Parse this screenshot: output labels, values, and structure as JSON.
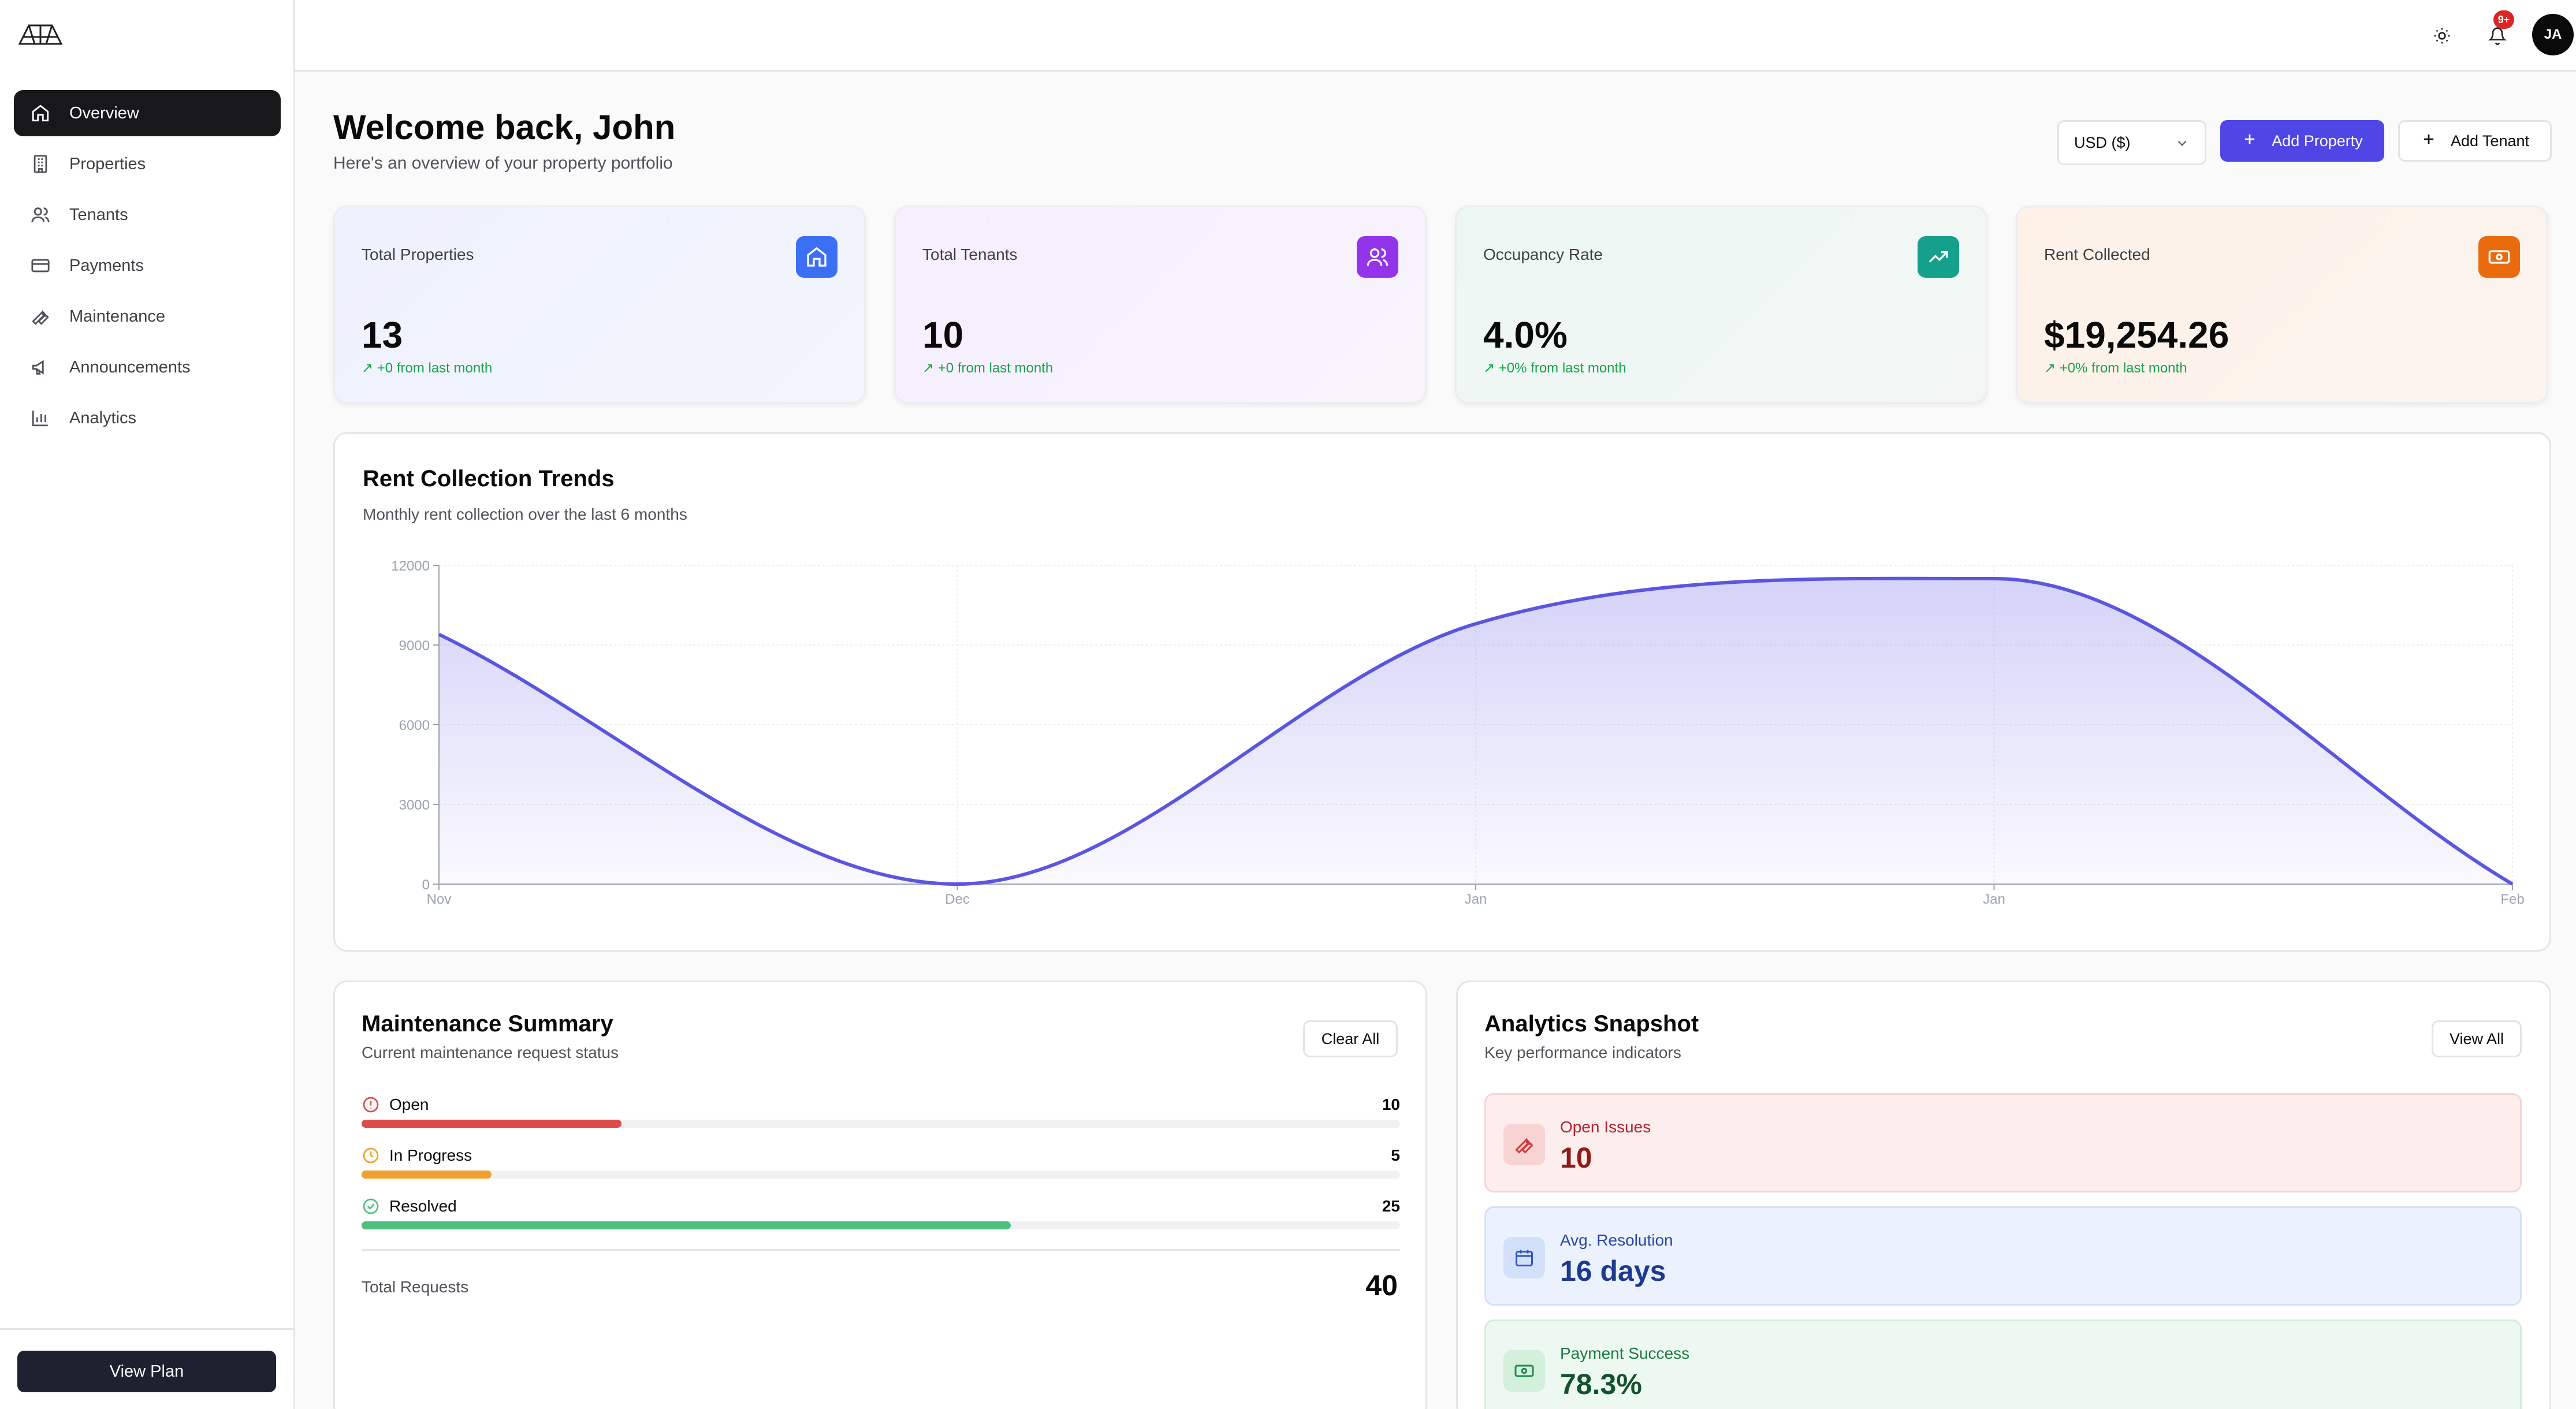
{
  "sidebar": {
    "items": [
      {
        "label": "Overview",
        "icon": "home-icon",
        "active": true
      },
      {
        "label": "Properties",
        "icon": "building-icon"
      },
      {
        "label": "Tenants",
        "icon": "users-icon"
      },
      {
        "label": "Payments",
        "icon": "credit-card-icon"
      },
      {
        "label": "Maintenance",
        "icon": "wrench-icon"
      },
      {
        "label": "Announcements",
        "icon": "megaphone-icon"
      },
      {
        "label": "Analytics",
        "icon": "bar-chart-icon"
      }
    ],
    "footer_button": "View Plan"
  },
  "topbar": {
    "notification_badge": "9+",
    "avatar_initials": "JA"
  },
  "header": {
    "title": "Welcome back, John",
    "subtitle": "Here's an overview of your property portfolio",
    "currency": "USD ($)",
    "add_property": "Add Property",
    "add_tenant": "Add Tenant"
  },
  "stats": [
    {
      "label": "Total Properties",
      "value": "13",
      "delta": "+0 from last month",
      "icon": "home-icon",
      "color": "#3b6ff5"
    },
    {
      "label": "Total Tenants",
      "value": "10",
      "delta": "+0 from last month",
      "icon": "users-icon",
      "color": "#9333ea"
    },
    {
      "label": "Occupancy Rate",
      "value": "4.0%",
      "delta": "+0% from last month",
      "icon": "trending-up-icon",
      "color": "#14a08a"
    },
    {
      "label": "Rent Collected",
      "value": "$19,254.26",
      "delta": "+0% from last month",
      "icon": "banknote-icon",
      "color": "#ea6b0e"
    }
  ],
  "chart_section": {
    "title": "Rent Collection Trends",
    "subtitle": "Monthly rent collection over the last 6 months"
  },
  "chart_data": {
    "type": "area",
    "x": [
      "Nov",
      "Dec",
      "Jan",
      "Jan",
      "Feb"
    ],
    "values": [
      9400,
      0,
      9800,
      11500,
      0
    ],
    "ylim": [
      0,
      12000
    ],
    "yticks": [
      "0",
      "3000",
      "6000",
      "9000",
      "12000"
    ],
    "line_color": "#5b55e0",
    "grid": true
  },
  "maintenance": {
    "title": "Maintenance Summary",
    "subtitle": "Current maintenance request status",
    "clear_all": "Clear All",
    "rows": [
      {
        "label": "Open",
        "value": "10",
        "fraction": 0.25,
        "color": "#dc4b4b",
        "icon": "alert-circle-icon"
      },
      {
        "label": "In Progress",
        "value": "5",
        "fraction": 0.125,
        "color": "#f0a030",
        "icon": "clock-icon"
      },
      {
        "label": "Resolved",
        "value": "25",
        "fraction": 0.625,
        "color": "#4fbf7f",
        "icon": "check-circle-icon"
      }
    ],
    "total_label": "Total Requests",
    "total_value": "40"
  },
  "analytics": {
    "title": "Analytics Snapshot",
    "subtitle": "Key performance indicators",
    "view_all": "View All",
    "tiles": [
      {
        "label": "Open Issues",
        "value": "10",
        "icon": "wrench-icon"
      },
      {
        "label": "Avg. Resolution",
        "value": "16 days",
        "icon": "calendar-icon"
      },
      {
        "label": "Payment Success",
        "value": "78.3%",
        "icon": "banknote-icon"
      }
    ]
  }
}
